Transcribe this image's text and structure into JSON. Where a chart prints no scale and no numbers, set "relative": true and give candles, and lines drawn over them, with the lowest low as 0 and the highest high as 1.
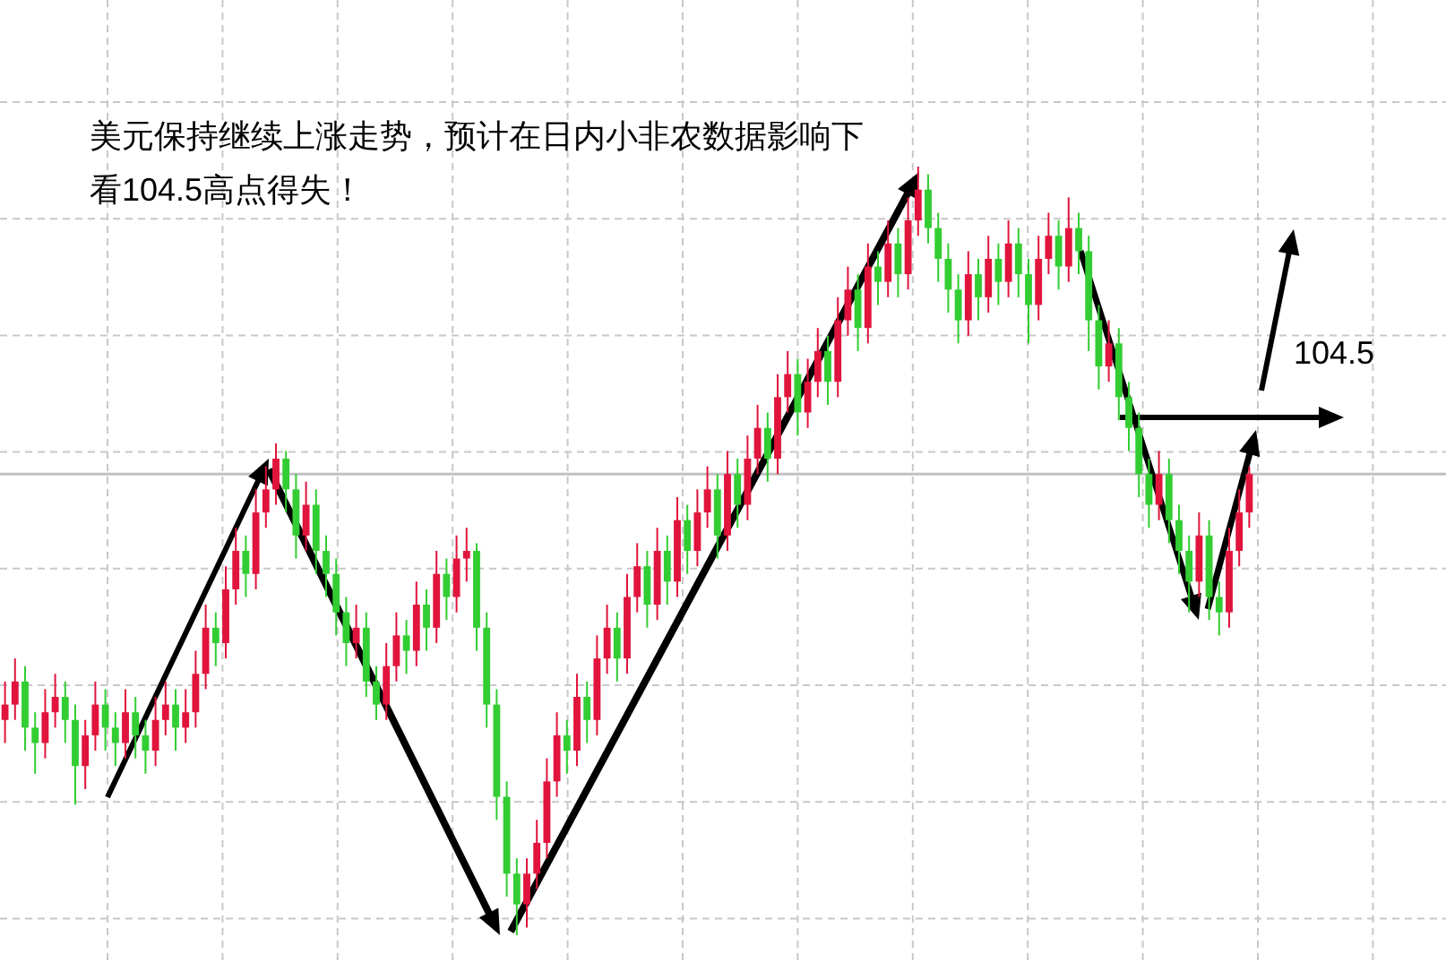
{
  "chart_data": {
    "type": "candlestick",
    "title": "美元保持继续上涨走势，预计在日内小非农数据影响下",
    "subtitle": "看104.5高点得失！",
    "annotations": [
      "104.5"
    ],
    "relative": true,
    "grid": true,
    "ref_lines": [
      {
        "axis": "y",
        "value": 0.6,
        "color": "#c0c0c0",
        "line_style": "solid"
      }
    ],
    "categories": [
      null,
      null,
      null,
      null,
      null,
      null,
      null,
      null,
      null,
      null,
      null,
      null,
      null,
      null,
      null,
      null,
      null,
      null,
      null,
      null,
      null,
      null,
      null,
      null,
      null,
      null,
      null,
      null,
      null,
      null,
      null,
      null,
      null,
      null,
      null,
      null,
      null,
      null,
      null,
      null,
      null,
      null,
      null,
      null,
      null,
      null,
      null,
      null,
      null,
      null,
      null,
      null,
      null,
      null,
      null,
      null,
      null,
      null,
      null,
      null,
      null,
      null,
      null,
      null,
      null,
      null,
      null,
      null,
      null,
      null,
      null,
      null,
      null,
      null,
      null,
      null,
      null,
      null,
      null,
      null,
      null,
      null,
      null,
      null,
      null,
      null,
      null,
      null,
      null,
      null,
      null,
      null,
      null,
      null,
      null,
      null,
      null,
      null,
      null,
      null,
      null,
      null,
      null,
      null,
      null,
      null,
      null,
      null,
      null,
      null,
      null,
      null,
      null,
      null,
      null,
      null,
      null,
      null,
      null,
      null,
      null,
      null,
      null,
      null,
      null
    ],
    "ohlc": [
      [
        0.28,
        0.33,
        0.25,
        0.3
      ],
      [
        0.3,
        0.36,
        0.28,
        0.33
      ],
      [
        0.33,
        0.35,
        0.24,
        0.27
      ],
      [
        0.27,
        0.29,
        0.21,
        0.25
      ],
      [
        0.25,
        0.32,
        0.23,
        0.29
      ],
      [
        0.29,
        0.34,
        0.27,
        0.31
      ],
      [
        0.31,
        0.33,
        0.25,
        0.28
      ],
      [
        0.28,
        0.3,
        0.17,
        0.22
      ],
      [
        0.22,
        0.28,
        0.19,
        0.26
      ],
      [
        0.26,
        0.33,
        0.24,
        0.3
      ],
      [
        0.3,
        0.32,
        0.24,
        0.27
      ],
      [
        0.27,
        0.29,
        0.22,
        0.25
      ],
      [
        0.25,
        0.32,
        0.23,
        0.29
      ],
      [
        0.29,
        0.31,
        0.23,
        0.26
      ],
      [
        0.26,
        0.28,
        0.21,
        0.24
      ],
      [
        0.24,
        0.31,
        0.22,
        0.28
      ],
      [
        0.28,
        0.33,
        0.26,
        0.3
      ],
      [
        0.3,
        0.32,
        0.24,
        0.27
      ],
      [
        0.27,
        0.32,
        0.25,
        0.29
      ],
      [
        0.29,
        0.37,
        0.27,
        0.34
      ],
      [
        0.34,
        0.43,
        0.32,
        0.4
      ],
      [
        0.4,
        0.42,
        0.35,
        0.38
      ],
      [
        0.38,
        0.48,
        0.36,
        0.45
      ],
      [
        0.45,
        0.53,
        0.43,
        0.5
      ],
      [
        0.5,
        0.52,
        0.44,
        0.47
      ],
      [
        0.47,
        0.58,
        0.45,
        0.55
      ],
      [
        0.55,
        0.61,
        0.53,
        0.58
      ],
      [
        0.58,
        0.64,
        0.56,
        0.62
      ],
      [
        0.62,
        0.63,
        0.55,
        0.58
      ],
      [
        0.58,
        0.6,
        0.49,
        0.52
      ],
      [
        0.52,
        0.59,
        0.5,
        0.56
      ],
      [
        0.56,
        0.58,
        0.47,
        0.5
      ],
      [
        0.5,
        0.52,
        0.44,
        0.47
      ],
      [
        0.47,
        0.49,
        0.39,
        0.42
      ],
      [
        0.42,
        0.44,
        0.35,
        0.38
      ],
      [
        0.38,
        0.43,
        0.36,
        0.4
      ],
      [
        0.4,
        0.42,
        0.31,
        0.33
      ],
      [
        0.33,
        0.35,
        0.28,
        0.3
      ],
      [
        0.3,
        0.38,
        0.28,
        0.35
      ],
      [
        0.35,
        0.42,
        0.33,
        0.39
      ],
      [
        0.39,
        0.41,
        0.34,
        0.37
      ],
      [
        0.37,
        0.46,
        0.35,
        0.43
      ],
      [
        0.43,
        0.45,
        0.37,
        0.4
      ],
      [
        0.4,
        0.5,
        0.38,
        0.47
      ],
      [
        0.47,
        0.49,
        0.41,
        0.44
      ],
      [
        0.44,
        0.52,
        0.42,
        0.49
      ],
      [
        0.49,
        0.53,
        0.46,
        0.5
      ],
      [
        0.5,
        0.51,
        0.37,
        0.4
      ],
      [
        0.4,
        0.42,
        0.27,
        0.3
      ],
      [
        0.3,
        0.32,
        0.15,
        0.18
      ],
      [
        0.18,
        0.2,
        0.05,
        0.08
      ],
      [
        0.08,
        0.1,
        0.0,
        0.04
      ],
      [
        0.04,
        0.1,
        0.01,
        0.08
      ],
      [
        0.08,
        0.15,
        0.06,
        0.12
      ],
      [
        0.12,
        0.23,
        0.1,
        0.2
      ],
      [
        0.2,
        0.29,
        0.18,
        0.26
      ],
      [
        0.26,
        0.28,
        0.21,
        0.24
      ],
      [
        0.24,
        0.34,
        0.22,
        0.31
      ],
      [
        0.31,
        0.33,
        0.25,
        0.28
      ],
      [
        0.28,
        0.39,
        0.26,
        0.36
      ],
      [
        0.36,
        0.43,
        0.34,
        0.4
      ],
      [
        0.4,
        0.42,
        0.33,
        0.36
      ],
      [
        0.36,
        0.47,
        0.34,
        0.44
      ],
      [
        0.44,
        0.51,
        0.42,
        0.48
      ],
      [
        0.48,
        0.5,
        0.4,
        0.43
      ],
      [
        0.43,
        0.53,
        0.41,
        0.5
      ],
      [
        0.5,
        0.52,
        0.43,
        0.46
      ],
      [
        0.46,
        0.57,
        0.44,
        0.54
      ],
      [
        0.54,
        0.56,
        0.47,
        0.5
      ],
      [
        0.5,
        0.58,
        0.48,
        0.55
      ],
      [
        0.55,
        0.61,
        0.53,
        0.58
      ],
      [
        0.58,
        0.6,
        0.49,
        0.52
      ],
      [
        0.52,
        0.63,
        0.5,
        0.6
      ],
      [
        0.6,
        0.62,
        0.53,
        0.56
      ],
      [
        0.56,
        0.65,
        0.54,
        0.62
      ],
      [
        0.62,
        0.69,
        0.6,
        0.66
      ],
      [
        0.66,
        0.68,
        0.59,
        0.62
      ],
      [
        0.62,
        0.73,
        0.6,
        0.7
      ],
      [
        0.7,
        0.76,
        0.68,
        0.73
      ],
      [
        0.73,
        0.75,
        0.65,
        0.68
      ],
      [
        0.68,
        0.75,
        0.66,
        0.72
      ],
      [
        0.72,
        0.79,
        0.7,
        0.76
      ],
      [
        0.76,
        0.78,
        0.69,
        0.72
      ],
      [
        0.72,
        0.83,
        0.7,
        0.8
      ],
      [
        0.8,
        0.87,
        0.78,
        0.84
      ],
      [
        0.84,
        0.86,
        0.76,
        0.79
      ],
      [
        0.79,
        0.9,
        0.77,
        0.87
      ],
      [
        0.87,
        0.89,
        0.82,
        0.85
      ],
      [
        0.85,
        0.93,
        0.83,
        0.9
      ],
      [
        0.9,
        0.92,
        0.83,
        0.86
      ],
      [
        0.86,
        0.96,
        0.84,
        0.93
      ],
      [
        0.93,
        1.0,
        0.91,
        0.97
      ],
      [
        0.97,
        0.99,
        0.9,
        0.92
      ],
      [
        0.92,
        0.94,
        0.85,
        0.88
      ],
      [
        0.88,
        0.9,
        0.81,
        0.84
      ],
      [
        0.84,
        0.86,
        0.77,
        0.8
      ],
      [
        0.8,
        0.89,
        0.78,
        0.86
      ],
      [
        0.86,
        0.88,
        0.8,
        0.83
      ],
      [
        0.83,
        0.91,
        0.81,
        0.88
      ],
      [
        0.88,
        0.9,
        0.82,
        0.85
      ],
      [
        0.85,
        0.93,
        0.83,
        0.9
      ],
      [
        0.9,
        0.92,
        0.83,
        0.86
      ],
      [
        0.86,
        0.88,
        0.77,
        0.82
      ],
      [
        0.82,
        0.91,
        0.8,
        0.88
      ],
      [
        0.88,
        0.94,
        0.86,
        0.91
      ],
      [
        0.91,
        0.93,
        0.84,
        0.87
      ],
      [
        0.87,
        0.96,
        0.85,
        0.92
      ],
      [
        0.92,
        0.94,
        0.86,
        0.89
      ],
      [
        0.89,
        0.91,
        0.76,
        0.8
      ],
      [
        0.8,
        0.82,
        0.71,
        0.74
      ],
      [
        0.74,
        0.8,
        0.72,
        0.77
      ],
      [
        0.77,
        0.79,
        0.67,
        0.7
      ],
      [
        0.7,
        0.72,
        0.63,
        0.66
      ],
      [
        0.66,
        0.68,
        0.57,
        0.6
      ],
      [
        0.6,
        0.62,
        0.53,
        0.56
      ],
      [
        0.56,
        0.63,
        0.54,
        0.6
      ],
      [
        0.6,
        0.62,
        0.51,
        0.54
      ],
      [
        0.54,
        0.56,
        0.47,
        0.5
      ],
      [
        0.5,
        0.52,
        0.42,
        0.46
      ],
      [
        0.46,
        0.55,
        0.44,
        0.52
      ],
      [
        0.52,
        0.54,
        0.41,
        0.44
      ],
      [
        0.44,
        0.46,
        0.39,
        0.42
      ],
      [
        0.42,
        0.53,
        0.4,
        0.5
      ],
      [
        0.5,
        0.58,
        0.48,
        0.55
      ],
      [
        0.55,
        0.61,
        0.53,
        0.6
      ]
    ]
  }
}
